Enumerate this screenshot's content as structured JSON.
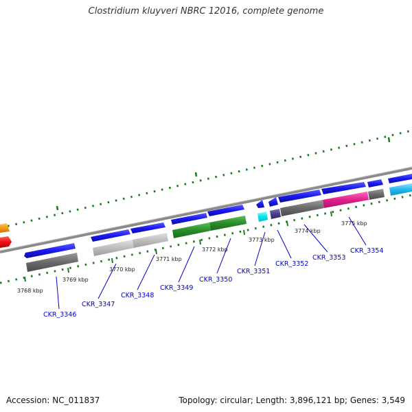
{
  "title": "Clostridium kluyveri NBRC 12016, complete genome",
  "footer": {
    "accession": "Accession: NC_011837",
    "stats": "Topology: circular; Length: 3,896,121 bp; Genes: 3,549"
  },
  "ticks": [
    "3768 kbp",
    "3769 kbp",
    "3770 kbp",
    "3771 kbp",
    "3772 kbp",
    "3773 kbp",
    "3774 kbp",
    "3775 kbp"
  ],
  "genes": [
    "CKR_3346",
    "CKR_3347",
    "CKR_3348",
    "CKR_3349",
    "CKR_3350",
    "CKR_3351",
    "CKR_3352",
    "CKR_3353",
    "CKR_3354"
  ],
  "colors": {
    "forward_cds": "#1a1aee",
    "genome_line": "#8a8a8a",
    "tick": "#1e7a1e",
    "label": "#0000cc",
    "gray_dark": "#6a6a6a",
    "gray_light": "#bdbdbd",
    "green": "#2a8c2a",
    "cyan": "#00e5f0",
    "purple": "#4a3f8a",
    "magenta": "#e0208c",
    "sky": "#22b8ee",
    "orange": "#f59b14",
    "red": "#ee1111"
  }
}
